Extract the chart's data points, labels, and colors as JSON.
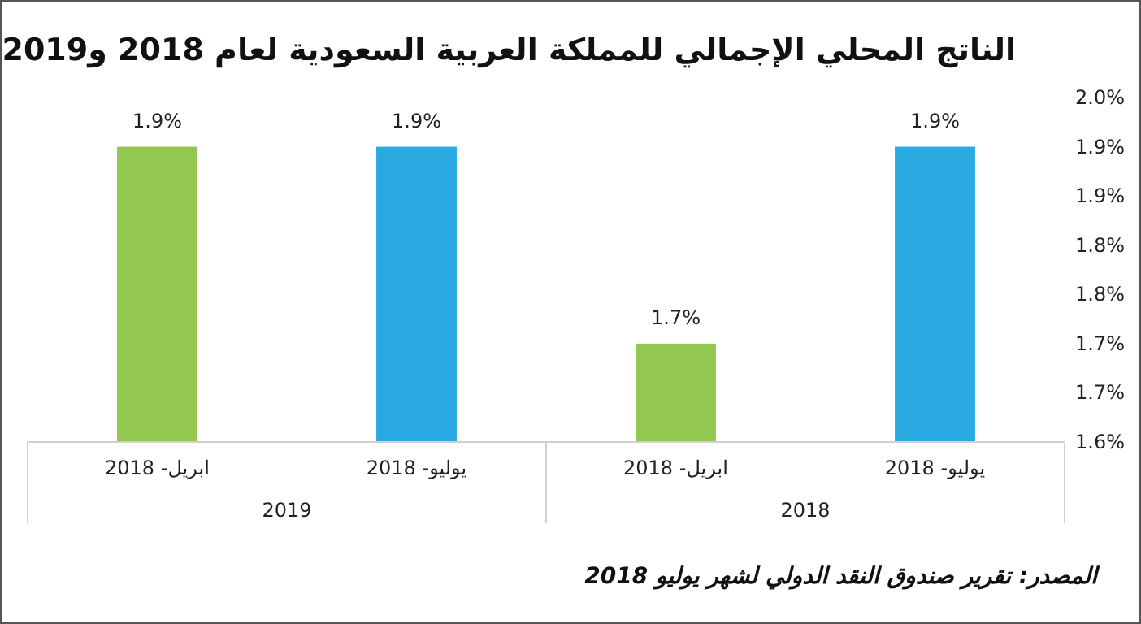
{
  "chart_data": {
    "type": "bar",
    "title": "الناتج المحلي الإجمالي للمملكة العربية السعودية لعام 2018 و2019",
    "categories": [
      "ابريل- 2018",
      "يوليو- 2018",
      "ابريل- 2018",
      "يوليو- 2018"
    ],
    "values": [
      1.9,
      1.9,
      1.7,
      1.9
    ],
    "colors": [
      "#92c850",
      "#29abe2",
      "#92c850",
      "#29abe2"
    ],
    "value_labels": [
      "1.9%",
      "1.9%",
      "1.7%",
      "1.9%"
    ],
    "ylim": [
      1.6,
      1.95
    ],
    "yticks": [
      {
        "value": 1.6,
        "label": "1.6%"
      },
      {
        "value": 1.65,
        "label": "1.7%"
      },
      {
        "value": 1.7,
        "label": "1.7%"
      },
      {
        "value": 1.75,
        "label": "1.8%"
      },
      {
        "value": 1.8,
        "label": "1.8%"
      },
      {
        "value": 1.85,
        "label": "1.9%"
      },
      {
        "value": 1.9,
        "label": "1.9%"
      },
      {
        "value": 1.95,
        "label": "2.0%"
      }
    ],
    "annotations": [
      "2019",
      "2018",
      "المصدر: تقرير صندوق النقد الدولي لشهر يوليو 2018"
    ]
  }
}
